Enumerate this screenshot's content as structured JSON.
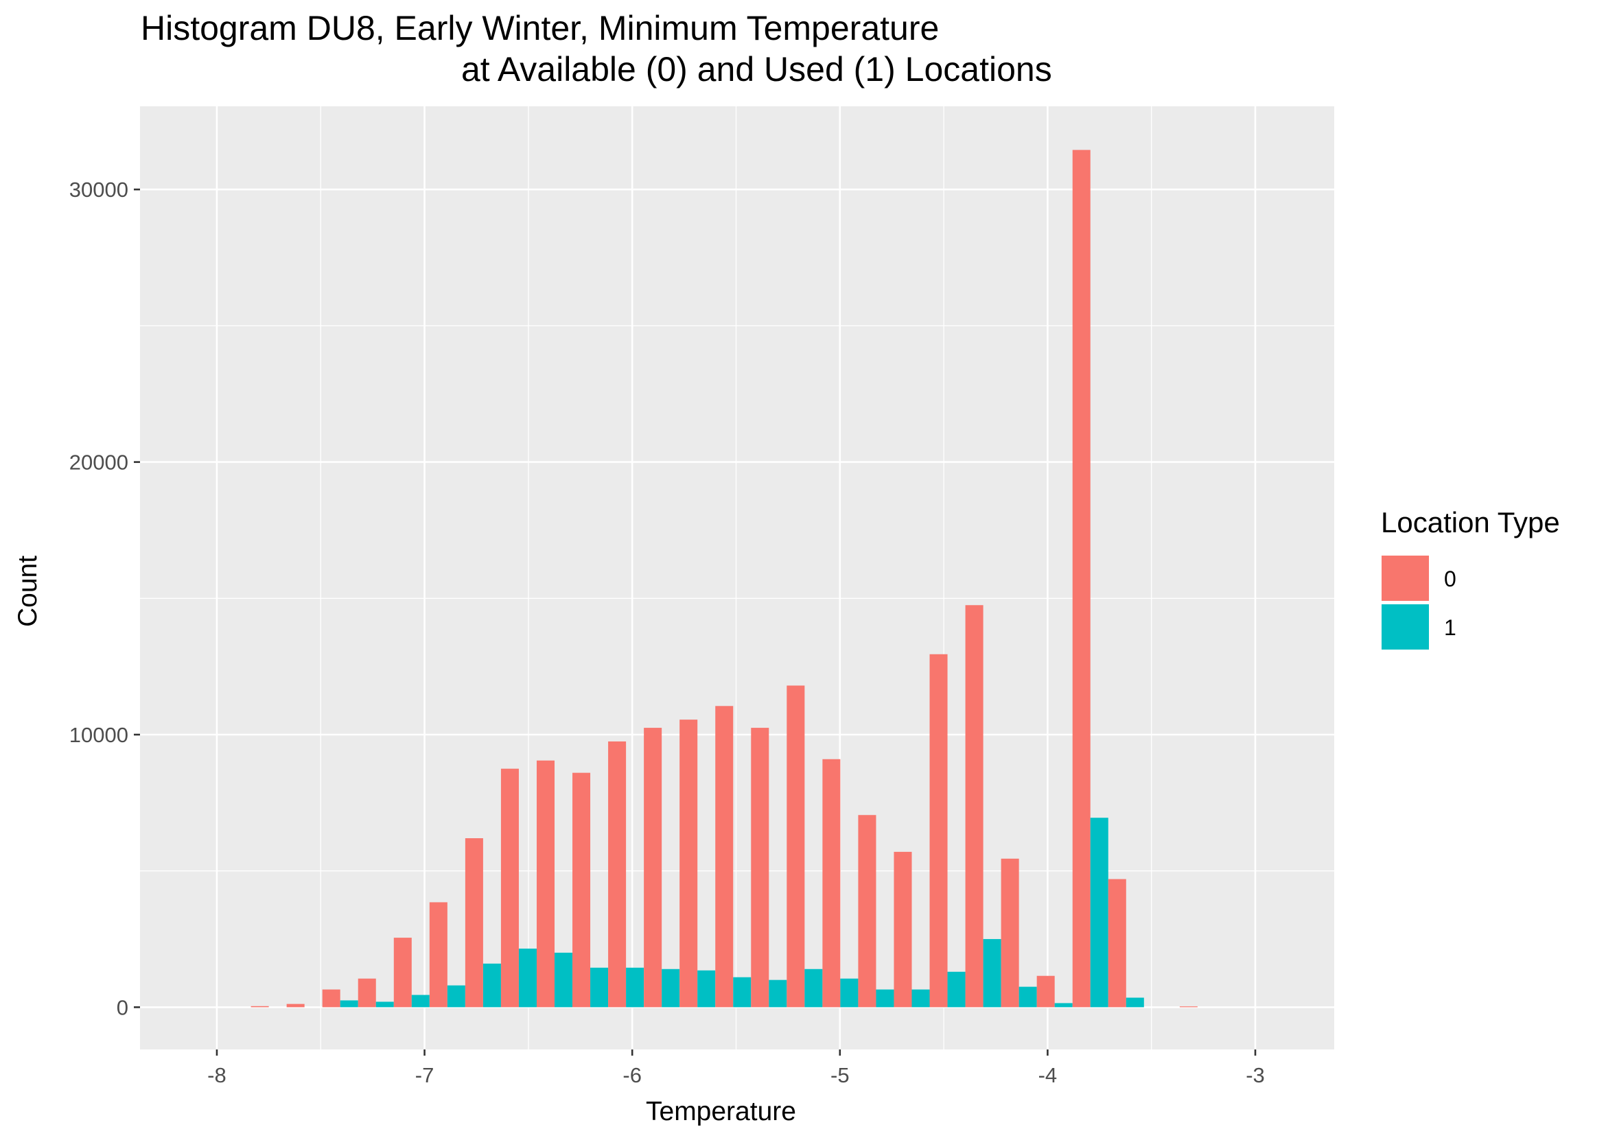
{
  "chart_data": {
    "type": "bar",
    "title_line1": "Histogram DU8, Early Winter, Minimum Temperature",
    "title_line2": "at Available (0) and Used (1) Locations",
    "xlabel": "Temperature",
    "ylabel": "Count",
    "xlim": [
      -8.37,
      -2.62
    ],
    "ylim": [
      -1550,
      33050
    ],
    "x_ticks": [
      -8,
      -7,
      -6,
      -5,
      -4,
      -3
    ],
    "x_tick_labels": [
      "-8",
      "-7",
      "-6",
      "-5",
      "-4",
      "-3"
    ],
    "y_ticks": [
      0,
      10000,
      20000,
      30000
    ],
    "y_tick_labels": [
      "0",
      "10000",
      "20000",
      "30000"
    ],
    "bin_width": 0.172,
    "bin_centers": [
      -7.75,
      -7.578,
      -7.406,
      -7.234,
      -7.062,
      -6.89,
      -6.718,
      -6.546,
      -6.374,
      -6.202,
      -6.03,
      -5.858,
      -5.686,
      -5.514,
      -5.342,
      -5.17,
      -4.998,
      -4.826,
      -4.654,
      -4.482,
      -4.31,
      -4.138,
      -3.966,
      -3.794,
      -3.622,
      -3.45,
      -3.278
    ],
    "series": [
      {
        "name": "0",
        "color": "#F8766D",
        "values": [
          40,
          120,
          650,
          1050,
          2550,
          3850,
          6200,
          8750,
          9050,
          8600,
          9750,
          10250,
          10550,
          11050,
          10250,
          11800,
          9100,
          7050,
          5700,
          12950,
          14750,
          5450,
          1150,
          31450,
          4700,
          0,
          30
        ]
      },
      {
        "name": "1",
        "color": "#00BFC4",
        "values": [
          0,
          0,
          250,
          200,
          450,
          800,
          1600,
          2150,
          2000,
          1450,
          1450,
          1400,
          1350,
          1100,
          1000,
          1400,
          1050,
          650,
          650,
          1300,
          2500,
          750,
          150,
          6950,
          350,
          0,
          0
        ]
      }
    ],
    "legend": {
      "title": "Location Type",
      "placement": "right",
      "entries": [
        "0",
        "1"
      ]
    },
    "grid": true,
    "panel_background": "#EBEBEB"
  }
}
